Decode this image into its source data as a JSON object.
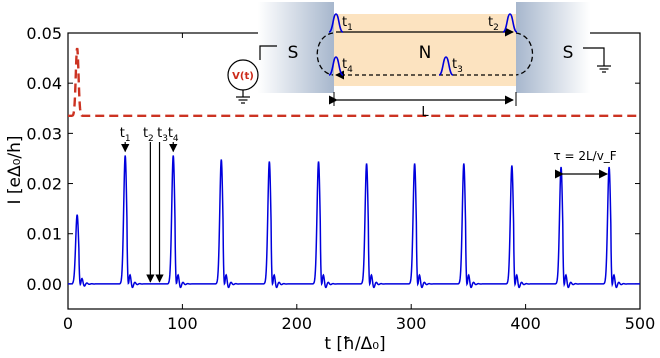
{
  "chart_data": {
    "type": "line",
    "xlabel": "t [ħ/Δ₀]",
    "ylabel": "I [eΔ₀/h]",
    "xlim": [
      0,
      500
    ],
    "ylim": [
      -0.005,
      0.05
    ],
    "x_ticks": [
      0,
      100,
      200,
      300,
      400,
      500
    ],
    "y_ticks": [
      0.0,
      0.01,
      0.02,
      0.03,
      0.04,
      0.05
    ],
    "x_tick_labels": [
      "0",
      "100",
      "200",
      "300",
      "400",
      "500"
    ],
    "y_tick_labels": [
      "0.00",
      "0.01",
      "0.02",
      "0.03",
      "0.04",
      "0.05"
    ],
    "grid": false,
    "series": [
      {
        "color": "#0000dd",
        "style": "solid",
        "baseline": 0.0,
        "peaks": [
          {
            "t": 8,
            "I": 0.0138
          },
          {
            "t": 50,
            "I": 0.0256
          },
          {
            "t": 92,
            "I": 0.0256
          },
          {
            "t": 134,
            "I": 0.0248
          },
          {
            "t": 176,
            "I": 0.0244
          },
          {
            "t": 219,
            "I": 0.0244
          },
          {
            "t": 261,
            "I": 0.024
          },
          {
            "t": 303,
            "I": 0.024
          },
          {
            "t": 346,
            "I": 0.024
          },
          {
            "t": 388,
            "I": 0.0236
          },
          {
            "t": 431,
            "I": 0.0233
          },
          {
            "t": 473,
            "I": 0.0233
          }
        ]
      },
      {
        "color": "#cc3322",
        "style": "dashed",
        "baseline": 0.0335,
        "pulse_t": 8,
        "pulse_peak": 0.047
      }
    ],
    "annotations": {
      "markers": [
        {
          "label": "t1",
          "t": 50
        },
        {
          "label": "t2",
          "t": 72
        },
        {
          "label": "t3",
          "t": 80
        },
        {
          "label": "t4",
          "t": 92
        }
      ],
      "period_label": "τ = 2L/v_F",
      "period_from": 431,
      "period_to": 473
    }
  },
  "inset": {
    "left_lead": "S",
    "right_lead": "S",
    "middle": "N",
    "length_label": "L",
    "source_label": "V(t)",
    "times": [
      "t1",
      "t2",
      "t3",
      "t4"
    ],
    "colors": {
      "normal_region": "#fce3c0",
      "lead_gradient": "#a7b7cd",
      "source": "#cc2a1a",
      "pulse": "#0000dd"
    }
  }
}
